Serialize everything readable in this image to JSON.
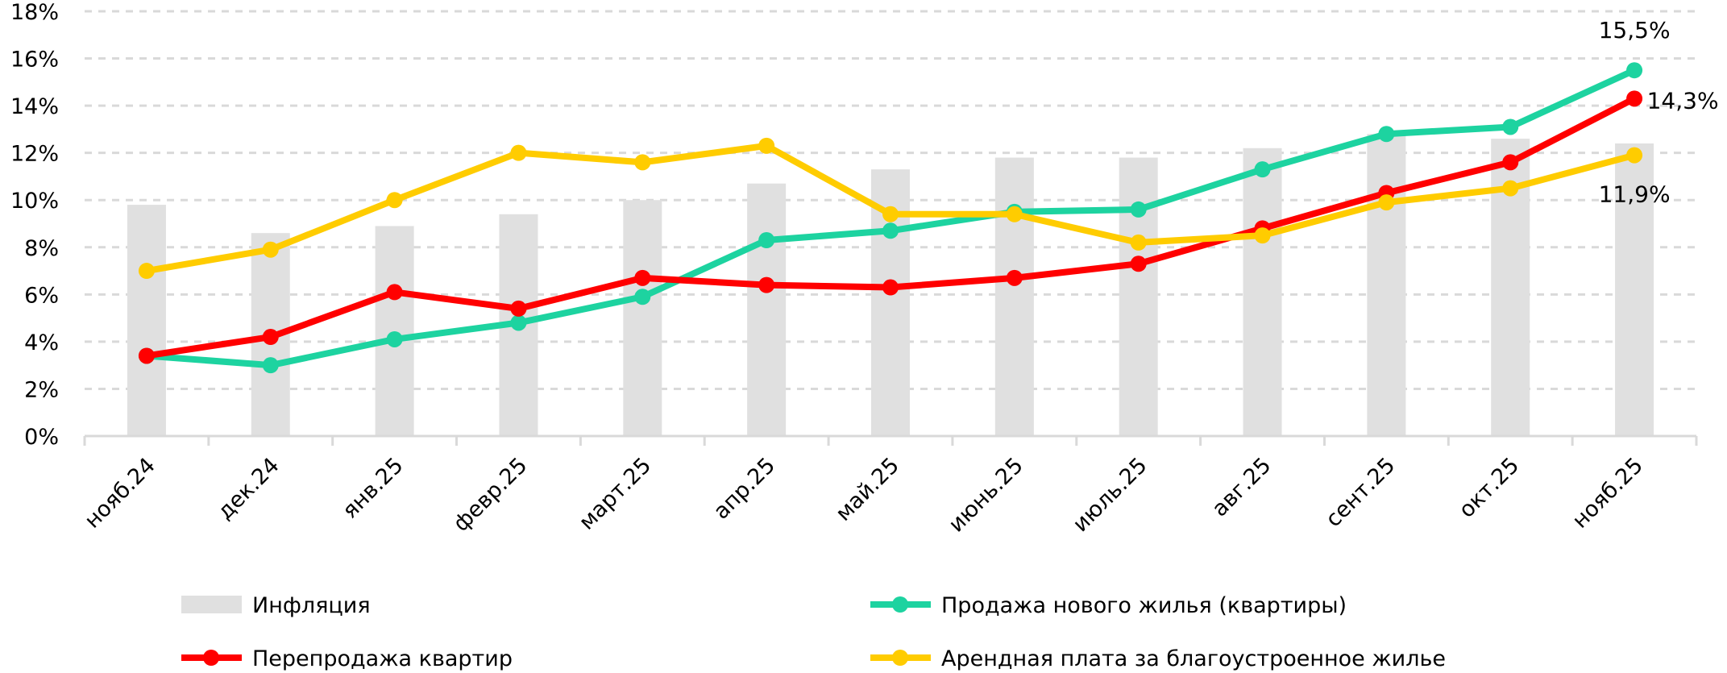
{
  "chart_data": {
    "type": "line",
    "title": "",
    "xlabel": "",
    "ylabel": "",
    "ylim": [
      0,
      18
    ],
    "grid": true,
    "legend_placement": "bottom",
    "y_ticks": [
      "0%",
      "2%",
      "4%",
      "6%",
      "8%",
      "10%",
      "12%",
      "14%",
      "16%",
      "18%"
    ],
    "categories": [
      "нояб.24",
      "дек.24",
      "янв.25",
      "февр.25",
      "март.25",
      "апр.25",
      "май.25",
      "июнь.25",
      "июль.25",
      "авг.25",
      "сент.25",
      "окт.25",
      "нояб.25"
    ],
    "series": [
      {
        "name": "Инфляция",
        "kind": "bar",
        "color": "#E0E0E0",
        "values": [
          9.8,
          8.6,
          8.9,
          9.4,
          10.0,
          10.7,
          11.3,
          11.8,
          11.8,
          12.2,
          12.8,
          12.6,
          12.4
        ]
      },
      {
        "name": "Продажа нового жилья (квартиры)",
        "kind": "line",
        "color": "#1DD3A0",
        "values": [
          3.4,
          3.0,
          4.1,
          4.8,
          5.9,
          8.3,
          8.7,
          9.5,
          9.6,
          11.3,
          12.8,
          13.1,
          15.5
        ]
      },
      {
        "name": "Перепродажа квартир",
        "kind": "line",
        "color": "#FF0000",
        "values": [
          3.4,
          4.2,
          6.1,
          5.4,
          6.7,
          6.4,
          6.3,
          6.7,
          7.3,
          8.8,
          10.3,
          11.6,
          14.3
        ]
      },
      {
        "name": "Арендная плата за благоустроенное жилье",
        "kind": "line",
        "color": "#FFCC00",
        "values": [
          7.0,
          7.9,
          10.0,
          12.0,
          11.6,
          12.3,
          9.4,
          9.4,
          8.2,
          8.5,
          9.9,
          10.5,
          11.9
        ]
      }
    ],
    "data_labels": [
      {
        "series": 1,
        "index": 12,
        "text": "15,5%"
      },
      {
        "series": 2,
        "index": 12,
        "text": "14,3%"
      },
      {
        "series": 3,
        "index": 12,
        "text": "11,9%"
      }
    ]
  }
}
